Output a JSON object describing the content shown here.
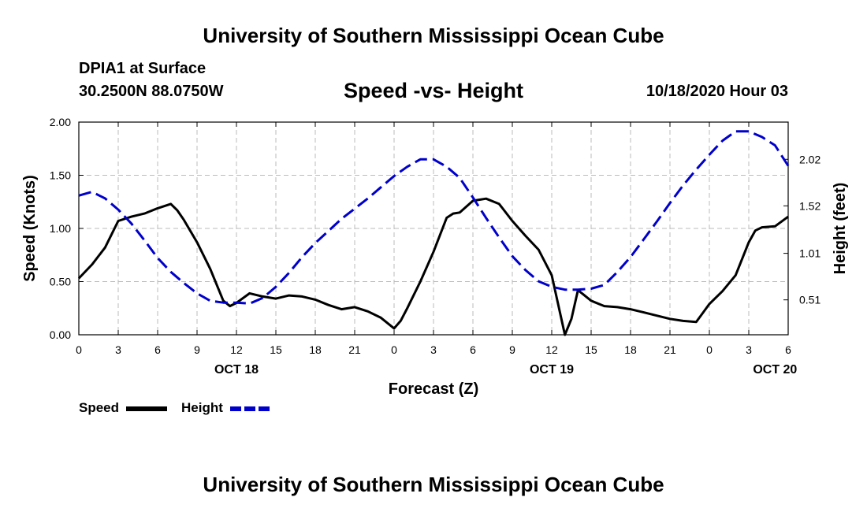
{
  "header": {
    "title": "University of Southern Mississippi Ocean Cube",
    "station": "DPIA1 at Surface",
    "coords": "30.2500N 88.0750W",
    "datetime": "10/18/2020 Hour 03"
  },
  "footer": {
    "title": "University of Southern Mississippi Ocean Cube"
  },
  "chart_data": {
    "type": "line",
    "title": "Speed -vs- Height",
    "xlabel": "Forecast (Z)",
    "ylabel": "Speed (Knots)",
    "y2label": "Height (feet)",
    "xlim": [
      0,
      54
    ],
    "ylim": [
      0,
      2
    ],
    "y2lim": [
      0.135,
      2.42
    ],
    "grid": true,
    "legend_position": "bottom-left",
    "x_ticks": [
      0,
      3,
      6,
      9,
      12,
      15,
      18,
      21,
      24,
      27,
      30,
      33,
      36,
      39,
      42,
      45,
      48,
      51,
      54
    ],
    "x_tick_labels": [
      "0",
      "3",
      "6",
      "9",
      "12",
      "15",
      "18",
      "21",
      "0",
      "3",
      "6",
      "9",
      "12",
      "15",
      "18",
      "21",
      "0",
      "3",
      "6"
    ],
    "day_labels": [
      {
        "x": 12,
        "label": "OCT 18"
      },
      {
        "x": 36,
        "label": "OCT 19"
      },
      {
        "x": 53,
        "label": "OCT 20"
      }
    ],
    "y_ticks": [
      0,
      0.5,
      1.0,
      1.5,
      2.0
    ],
    "y_tick_labels": [
      "0.00",
      "0.50",
      "1.00",
      "1.50",
      "2.00"
    ],
    "y2_ticks": [
      0.51,
      1.01,
      1.52,
      2.02
    ],
    "y2_tick_labels": [
      "0.51",
      "1.01",
      "1.52",
      "2.02"
    ],
    "series": [
      {
        "name": "Speed",
        "axis": "left",
        "color": "#000000",
        "dash": "solid",
        "x": [
          0,
          1,
          2,
          3,
          4,
          5,
          6,
          7,
          7.5,
          8,
          9,
          10,
          11,
          11.5,
          12,
          13,
          14,
          15,
          16,
          17,
          18,
          19,
          20,
          21,
          22,
          23,
          24,
          24.5,
          25,
          26,
          27,
          28,
          28.5,
          29,
          30,
          31,
          32,
          33,
          34,
          35,
          36,
          37,
          37.5,
          38,
          39,
          40,
          41,
          42,
          43,
          44,
          45,
          46,
          47,
          48,
          49,
          50,
          51,
          51.5,
          52,
          53,
          54
        ],
        "values": [
          0.53,
          0.66,
          0.82,
          1.07,
          1.11,
          1.14,
          1.19,
          1.23,
          1.17,
          1.08,
          0.87,
          0.62,
          0.32,
          0.27,
          0.3,
          0.39,
          0.36,
          0.34,
          0.37,
          0.36,
          0.33,
          0.28,
          0.24,
          0.26,
          0.22,
          0.16,
          0.06,
          0.13,
          0.25,
          0.5,
          0.78,
          1.1,
          1.14,
          1.15,
          1.26,
          1.28,
          1.23,
          1.07,
          0.93,
          0.8,
          0.56,
          0.0,
          0.15,
          0.42,
          0.32,
          0.27,
          0.26,
          0.24,
          0.21,
          0.18,
          0.15,
          0.13,
          0.12,
          0.29,
          0.41,
          0.56,
          0.87,
          0.98,
          1.01,
          1.02,
          1.11
        ]
      },
      {
        "name": "Height",
        "axis": "right",
        "color": "#0000cc",
        "dash": "dashed",
        "x": [
          0,
          1,
          2,
          3,
          4,
          5,
          6,
          7,
          8,
          9,
          10,
          11,
          12,
          13,
          14,
          15,
          16,
          17,
          18,
          19,
          20,
          21,
          22,
          23,
          24,
          25,
          26,
          27,
          28,
          29,
          30,
          31,
          32,
          33,
          34,
          35,
          36,
          37,
          38,
          39,
          40,
          41,
          42,
          43,
          44,
          45,
          46,
          47,
          48,
          49,
          50,
          51,
          52,
          53,
          54
        ],
        "values": [
          1.63,
          1.67,
          1.6,
          1.48,
          1.33,
          1.15,
          0.96,
          0.81,
          0.69,
          0.58,
          0.5,
          0.48,
          0.48,
          0.47,
          0.53,
          0.65,
          0.8,
          0.97,
          1.12,
          1.25,
          1.38,
          1.49,
          1.6,
          1.72,
          1.84,
          1.94,
          2.02,
          2.02,
          1.94,
          1.82,
          1.61,
          1.39,
          1.18,
          0.98,
          0.83,
          0.71,
          0.65,
          0.62,
          0.62,
          0.63,
          0.67,
          0.81,
          0.97,
          1.16,
          1.35,
          1.55,
          1.74,
          1.91,
          2.07,
          2.22,
          2.32,
          2.32,
          2.26,
          2.17,
          1.95
        ]
      }
    ]
  }
}
